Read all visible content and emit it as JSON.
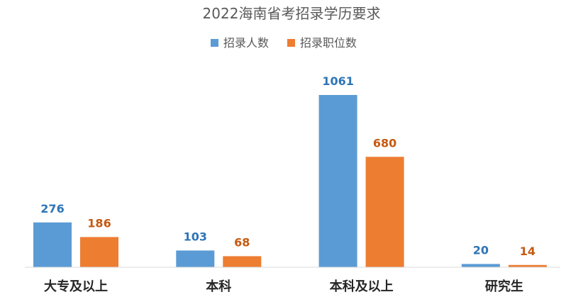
{
  "chart_data": {
    "type": "bar",
    "title": "2022海南省考招录学历要求",
    "categories": [
      "大专及以上",
      "本科",
      "本科及以上",
      "研究生"
    ],
    "series": [
      {
        "name": "招录人数",
        "values": [
          276,
          103,
          1061,
          20
        ],
        "color": "#5B9BD5",
        "label_color": "#2E75B6"
      },
      {
        "name": "招录职位数",
        "values": [
          186,
          68,
          680,
          14
        ],
        "color": "#ED7D31",
        "label_color": "#C55A11"
      }
    ],
    "legend_position": "top",
    "grid": false,
    "ylim": [
      0,
      1200
    ],
    "xlabel": "",
    "ylabel": ""
  }
}
